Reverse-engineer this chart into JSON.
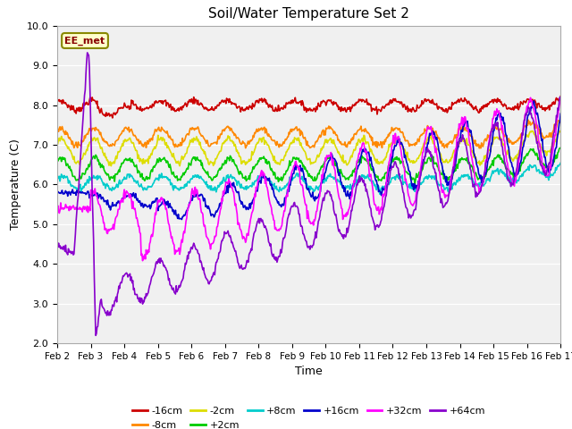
{
  "title": "Soil/Water Temperature Set 2",
  "xlabel": "Time",
  "ylabel": "Temperature (C)",
  "ylim": [
    2.0,
    10.0
  ],
  "yticks": [
    2.0,
    3.0,
    4.0,
    5.0,
    6.0,
    7.0,
    8.0,
    9.0,
    10.0
  ],
  "bg_color": "#e0e0e0",
  "plot_bg": "#f0f0f0",
  "annotation_text": "EE_met",
  "annotation_bg": "#ffffcc",
  "annotation_border": "#888800",
  "n_days": 15,
  "pts_per_day": 48,
  "xtick_labels": [
    "Feb 2",
    "Feb 3",
    "Feb 4",
    "Feb 5",
    "Feb 6",
    "Feb 7",
    "Feb 8",
    "Feb 9",
    "Feb 10",
    "Feb 11",
    "Feb 12",
    "Feb 13",
    "Feb 14",
    "Feb 15",
    "Feb 16",
    "Feb 17"
  ],
  "series": [
    {
      "label": "-16cm",
      "color": "#cc0000"
    },
    {
      "label": "-8cm",
      "color": "#ff8800"
    },
    {
      "label": "-2cm",
      "color": "#dddd00"
    },
    {
      "label": "+2cm",
      "color": "#00cc00"
    },
    {
      "label": "+8cm",
      "color": "#00cccc"
    },
    {
      "label": "+16cm",
      "color": "#0000cc"
    },
    {
      "label": "+32cm",
      "color": "#ff00ff"
    },
    {
      "label": "+64cm",
      "color": "#8800cc"
    }
  ]
}
